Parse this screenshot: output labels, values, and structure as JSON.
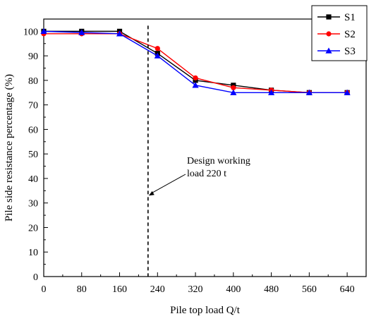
{
  "chart_data": {
    "type": "line",
    "xlabel": "Pile top load Q/t",
    "ylabel": "Pile side resistance percentage (%)",
    "xlim": [
      0,
      680
    ],
    "ylim": [
      0,
      105
    ],
    "x_ticks": [
      0,
      80,
      160,
      240,
      320,
      400,
      480,
      560,
      640
    ],
    "y_ticks": [
      0,
      10,
      20,
      30,
      40,
      50,
      60,
      70,
      80,
      90,
      100
    ],
    "grid": false,
    "legend_position": "top-right",
    "x": [
      0,
      80,
      160,
      240,
      320,
      400,
      480,
      560,
      640
    ],
    "series": [
      {
        "name": "S1",
        "color": "#000000",
        "marker": "square",
        "values": [
          100,
          100,
          100,
          91,
          80,
          78,
          76,
          75,
          75
        ]
      },
      {
        "name": "S2",
        "color": "#ff0000",
        "marker": "circle",
        "values": [
          99,
          99,
          99,
          93,
          81,
          77,
          76,
          75,
          75
        ]
      },
      {
        "name": "S3",
        "color": "#0000ff",
        "marker": "triangle",
        "values": [
          100,
          99.5,
          99,
          90,
          78,
          75,
          75,
          75,
          75
        ]
      }
    ],
    "reference_line": {
      "x": 220,
      "style": "dashed"
    },
    "annotation": {
      "lines": [
        "Design working",
        "load 220 t"
      ],
      "arrow_target": {
        "x": 220,
        "y": 33
      }
    }
  }
}
